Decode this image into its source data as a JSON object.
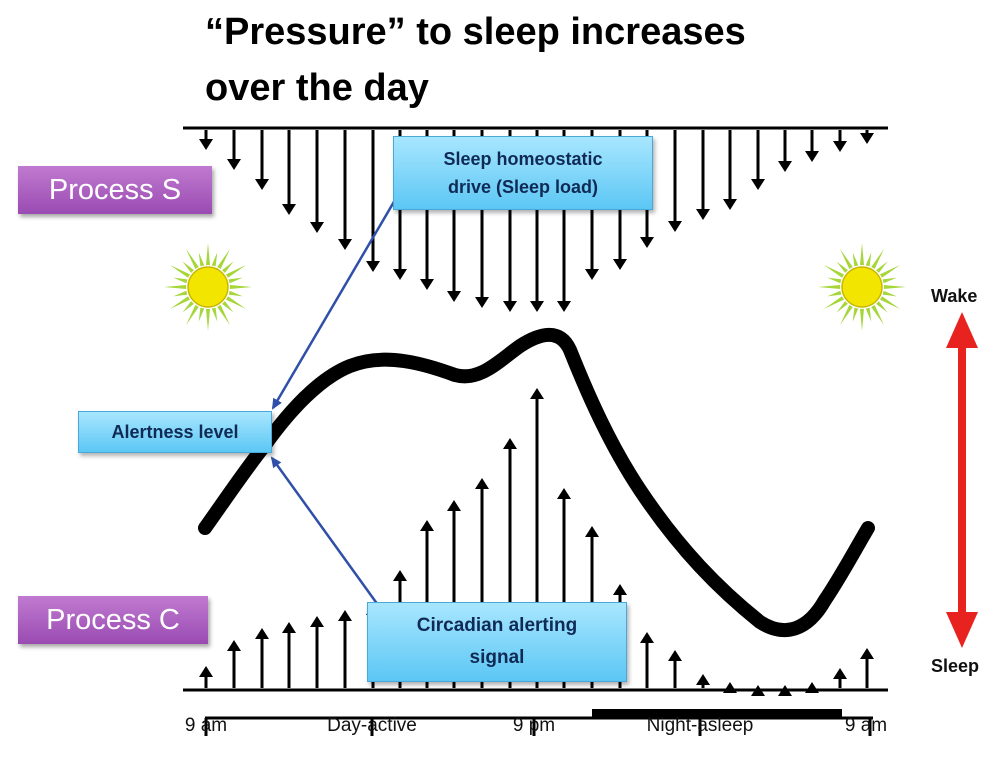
{
  "title": {
    "line1": "“Pressure” to sleep increases",
    "line2": "over the day"
  },
  "process_s_label": "Process S",
  "process_c_label": "Process C",
  "callouts": {
    "sleep_homeostatic": "Sleep homeostatic\ndrive (Sleep load)",
    "alertness": "Alertness level",
    "circadian": "Circadian alerting\nsignal"
  },
  "wake_label": "Wake",
  "sleep_label": "Sleep",
  "x_axis": {
    "ticks": [
      "9 am",
      "Day-active",
      "9 pm",
      "Night-asleep",
      "9 am"
    ]
  },
  "icons": [
    "sun-icon",
    "sun-icon",
    "double-arrow-icon"
  ],
  "colors": {
    "process_tag": "#9a4bb2",
    "callout": "#5cc7f4",
    "callout_arrow": "#2f4fa8",
    "wake_sleep_arrow": "#e8231f",
    "sun": "#f2e600",
    "curve": "#000000"
  }
}
